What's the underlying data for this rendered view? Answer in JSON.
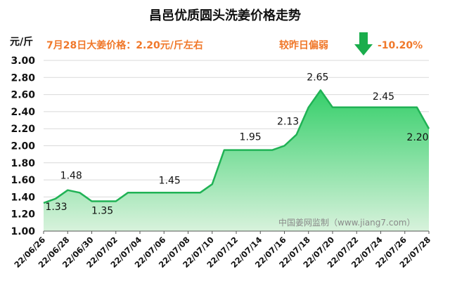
{
  "chart_data": {
    "type": "area",
    "title": "昌邑优质圆头洗姜价格走势",
    "ylabel": "元/斤",
    "xlabel": "",
    "ylim": [
      1.0,
      3.0
    ],
    "yticks": [
      "1.00",
      "1.20",
      "1.40",
      "1.60",
      "1.80",
      "2.00",
      "2.20",
      "2.40",
      "2.60",
      "2.80",
      "3.00"
    ],
    "xticks": [
      "22/06/26",
      "22/06/28",
      "22/06/30",
      "22/07/02",
      "22/07/04",
      "22/07/06",
      "22/07/08",
      "22/07/10",
      "22/07/12",
      "22/07/14",
      "22/07/16",
      "22/07/18",
      "22/07/20",
      "22/07/22",
      "22/07/24",
      "22/07/26",
      "22/07/28"
    ],
    "x": [
      "22/06/26",
      "22/06/27",
      "22/06/28",
      "22/06/29",
      "22/06/30",
      "22/07/01",
      "22/07/02",
      "22/07/03",
      "22/07/04",
      "22/07/05",
      "22/07/06",
      "22/07/07",
      "22/07/08",
      "22/07/09",
      "22/07/10",
      "22/07/11",
      "22/07/12",
      "22/07/13",
      "22/07/14",
      "22/07/15",
      "22/07/16",
      "22/07/17",
      "22/07/18",
      "22/07/19",
      "22/07/20",
      "22/07/21",
      "22/07/22",
      "22/07/23",
      "22/07/24",
      "22/07/25",
      "22/07/26",
      "22/07/27",
      "22/07/28"
    ],
    "values": [
      1.33,
      1.38,
      1.48,
      1.45,
      1.35,
      1.35,
      1.35,
      1.45,
      1.45,
      1.45,
      1.45,
      1.45,
      1.45,
      1.45,
      1.55,
      1.95,
      1.95,
      1.95,
      1.95,
      1.95,
      2.0,
      2.13,
      2.45,
      2.65,
      2.45,
      2.45,
      2.45,
      2.45,
      2.45,
      2.45,
      2.45,
      2.45,
      2.2
    ],
    "data_labels": [
      {
        "index": 0,
        "text": "1.33"
      },
      {
        "index": 2,
        "text": "1.48"
      },
      {
        "index": 5,
        "text": "1.35"
      },
      {
        "index": 10,
        "text": "1.45"
      },
      {
        "index": 17,
        "text": "1.95"
      },
      {
        "index": 21,
        "text": "2.13"
      },
      {
        "index": 23,
        "text": "2.65"
      },
      {
        "index": 28,
        "text": "2.45"
      },
      {
        "index": 32,
        "text": "2.20"
      }
    ],
    "colors": {
      "line": "#20b255",
      "fill_top": "#35cf6a",
      "fill_bottom": "#d8f2dc",
      "arrow": "#1aad4c",
      "annotation": "#f0782a"
    },
    "grid": "horizontal"
  },
  "annotation": {
    "price_text": "7月28日大姜价格：2.20元/斤左右",
    "compare_text": "较昨日偏弱",
    "change_text": "-10.20%",
    "arrow_icon": "arrow-down-icon"
  },
  "watermark": "中国姜网监制（www.jiang7.com）"
}
